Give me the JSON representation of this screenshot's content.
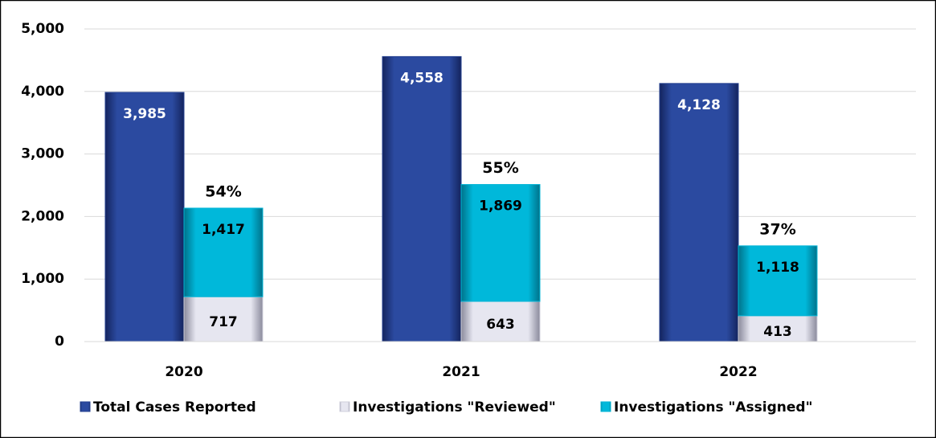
{
  "chart_data": {
    "type": "bar",
    "categories": [
      "2020",
      "2021",
      "2022"
    ],
    "series": [
      {
        "name": "Total Cases Reported",
        "color": "#233f8f",
        "values": [
          3985,
          4558,
          4128
        ],
        "value_labels": [
          "3,985",
          "4,558",
          "4,128"
        ]
      },
      {
        "name": "Investigations \"Reviewed\"",
        "color": "#d0d0dc",
        "values": [
          717,
          643,
          413
        ]
      },
      {
        "name": "Investigations \"Assigned\"",
        "color": "#00b4d6",
        "values": [
          1417,
          1869,
          1118
        ],
        "value_labels": [
          "1,417",
          "1,869",
          "1,118"
        ]
      }
    ],
    "annotations": [
      "54%",
      "55%",
      "37%"
    ],
    "ylim": [
      0,
      5000
    ],
    "yticks": [
      0,
      {
        "value": 1000,
        "label": "1,000"
      },
      {
        "value": 2000,
        "label": "2,000"
      },
      {
        "value": 3000,
        "label": "3,000"
      },
      {
        "value": 4000,
        "label": "4,000"
      },
      {
        "value": 5000,
        "label": "5,000"
      }
    ],
    "grid": true,
    "legend": "bottom"
  }
}
